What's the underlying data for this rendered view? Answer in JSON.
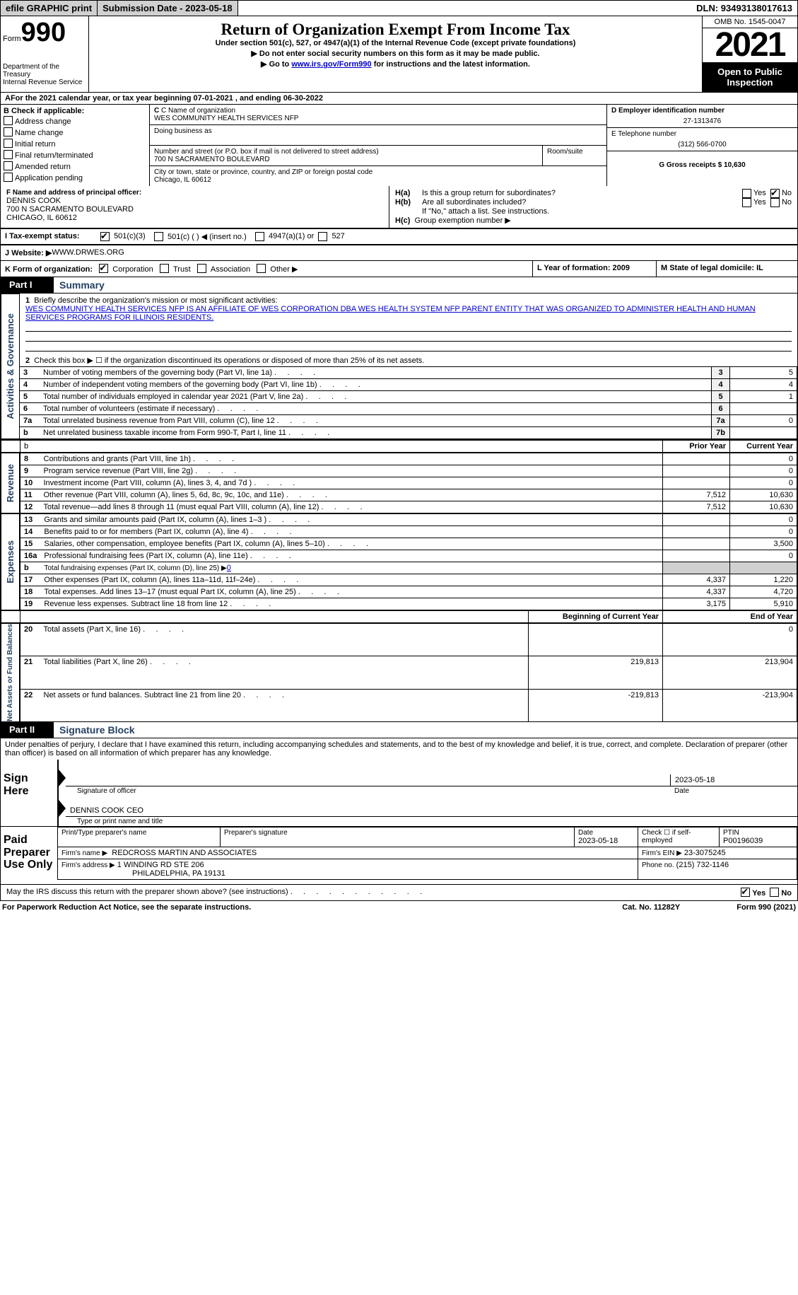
{
  "colors": {
    "bg": "#ffffff",
    "text": "#000000",
    "link": "#0000d0",
    "grey": "#d0d0d0",
    "heading": "#254061"
  },
  "top": {
    "efile": "efile GRAPHIC print",
    "submission": "Submission Date - 2023-05-18",
    "dln": "DLN: 93493138017613"
  },
  "header": {
    "form_word": "Form",
    "form_no": "990",
    "dept": "Department of the Treasury",
    "irs": "Internal Revenue Service",
    "title": "Return of Organization Exempt From Income Tax",
    "sub1": "Under section 501(c), 527, or 4947(a)(1) of the Internal Revenue Code (except private foundations)",
    "sub2": "▶ Do not enter social security numbers on this form as it may be made public.",
    "sub3_pre": "▶ Go to ",
    "sub3_link": "www.irs.gov/Form990",
    "sub3_post": " for instructions and the latest information.",
    "omb": "OMB No. 1545-0047",
    "year": "2021",
    "open": "Open to Public Inspection"
  },
  "A": {
    "text": "For the 2021 calendar year, or tax year beginning 07-01-2021    , and ending 06-30-2022"
  },
  "B": {
    "head": "B Check if applicable:",
    "items": [
      "Address change",
      "Name change",
      "Initial return",
      "Final return/terminated",
      "Amended return",
      "Application pending"
    ]
  },
  "C": {
    "name_lbl": "C Name of organization",
    "name": "WES COMMUNITY HEALTH SERVICES NFP",
    "dba_lbl": "Doing business as",
    "dba": "",
    "street_lbl": "Number and street (or P.O. box if mail is not delivered to street address)",
    "room_lbl": "Room/suite",
    "street": "700 N SACRAMENTO BOULEVARD",
    "city_lbl": "City or town, state or province, country, and ZIP or foreign postal code",
    "city": "Chicago, IL  60612"
  },
  "D": {
    "lbl": "D Employer identification number",
    "val": "27-1313476"
  },
  "E": {
    "lbl": "E Telephone number",
    "val": "(312) 566-0700"
  },
  "G": {
    "lbl": "G Gross receipts $ 10,630"
  },
  "F": {
    "lbl": "F  Name and address of principal officer:",
    "name": "DENNIS COOK",
    "street": "700 N SACRAMENTO BOULEVARD",
    "city": "CHICAGO, IL  60612"
  },
  "H": {
    "a": "Is this a group return for subordinates?",
    "b": "Are all subordinates included?",
    "ha_lbl": "H(a)",
    "hb_lbl": "H(b)",
    "note": "If \"No,\" attach a list. See instructions.",
    "hc_lbl": "H(c)",
    "hc": "Group exemption number ▶",
    "yes": "Yes",
    "no": "No"
  },
  "I": {
    "lbl": "I  Tax-exempt status:",
    "opts": [
      "501(c)(3)",
      "501(c) (  ) ◀ (insert no.)",
      "4947(a)(1) or",
      "527"
    ]
  },
  "J": {
    "lbl": "J  Website: ▶",
    "val": "  WWW.DRWES.ORG"
  },
  "K": {
    "lbl": "K Form of organization:",
    "opts": [
      "Corporation",
      "Trust",
      "Association",
      "Other ▶"
    ]
  },
  "L": {
    "lbl": "L Year of formation: 2009"
  },
  "M": {
    "lbl": "M State of legal domicile: IL"
  },
  "partI": {
    "tag": "Part I",
    "title": "Summary",
    "l1a": "Briefly describe the organization's mission or most significant activities:",
    "l1b": "WES COMMUNITY HEALTH SERVICES NFP IS AN AFFILIATE OF WES CORPORATION DBA WES HEALTH SYSTEM NFP PARENT ENTITY THAT WAS ORGANIZED TO ADMINISTER HEALTH AND HUMAN SERVICES PROGRAMS FOR ILLINOIS RESIDENTS.",
    "l2": "Check this box ▶ ☐  if the organization discontinued its operations or disposed of more than 25% of its net assets.",
    "rows_ag": [
      {
        "n": "3",
        "t": "Number of voting members of the governing body (Part VI, line 1a)",
        "box": "3",
        "v": "5"
      },
      {
        "n": "4",
        "t": "Number of independent voting members of the governing body (Part VI, line 1b)",
        "box": "4",
        "v": "4"
      },
      {
        "n": "5",
        "t": "Total number of individuals employed in calendar year 2021 (Part V, line 2a)",
        "box": "5",
        "v": "1"
      },
      {
        "n": "6",
        "t": "Total number of volunteers (estimate if necessary)",
        "box": "6",
        "v": ""
      },
      {
        "n": "7a",
        "t": "Total unrelated business revenue from Part VIII, column (C), line 12",
        "box": "7a",
        "v": "0"
      },
      {
        "n": "b",
        "t": "Net unrelated business taxable income from Form 990-T, Part I, line 11",
        "box": "7b",
        "v": ""
      }
    ],
    "col_pri": "Prior Year",
    "col_cur": "Current Year",
    "rev": [
      {
        "n": "8",
        "t": "Contributions and grants (Part VIII, line 1h)",
        "p": "",
        "c": "0"
      },
      {
        "n": "9",
        "t": "Program service revenue (Part VIII, line 2g)",
        "p": "",
        "c": "0"
      },
      {
        "n": "10",
        "t": "Investment income (Part VIII, column (A), lines 3, 4, and 7d )",
        "p": "",
        "c": "0"
      },
      {
        "n": "11",
        "t": "Other revenue (Part VIII, column (A), lines 5, 6d, 8c, 9c, 10c, and 11e)",
        "p": "7,512",
        "c": "10,630"
      },
      {
        "n": "12",
        "t": "Total revenue—add lines 8 through 11 (must equal Part VIII, column (A), line 12)",
        "p": "7,512",
        "c": "10,630"
      }
    ],
    "exp": [
      {
        "n": "13",
        "t": "Grants and similar amounts paid (Part IX, column (A), lines 1–3 )",
        "p": "",
        "c": "0"
      },
      {
        "n": "14",
        "t": "Benefits paid to or for members (Part IX, column (A), line 4)",
        "p": "",
        "c": "0"
      },
      {
        "n": "15",
        "t": "Salaries, other compensation, employee benefits (Part IX, column (A), lines 5–10)",
        "p": "",
        "c": "3,500"
      },
      {
        "n": "16a",
        "t": "Professional fundraising fees (Part IX, column (A), line 11e)",
        "p": "",
        "c": "0"
      },
      {
        "n": "b",
        "t": "Total fundraising expenses (Part IX, column (D), line 25) ▶",
        "p": "shade",
        "c": "shade",
        "link": "0"
      },
      {
        "n": "17",
        "t": "Other expenses (Part IX, column (A), lines 11a–11d, 11f–24e)",
        "p": "4,337",
        "c": "1,220"
      },
      {
        "n": "18",
        "t": "Total expenses. Add lines 13–17 (must equal Part IX, column (A), line 25)",
        "p": "4,337",
        "c": "4,720"
      },
      {
        "n": "19",
        "t": "Revenue less expenses. Subtract line 18 from line 12",
        "p": "3,175",
        "c": "5,910"
      }
    ],
    "col_beg": "Beginning of Current Year",
    "col_end": "End of Year",
    "nab": [
      {
        "n": "20",
        "t": "Total assets (Part X, line 16)",
        "p": "",
        "c": "0"
      },
      {
        "n": "21",
        "t": "Total liabilities (Part X, line 26)",
        "p": "219,813",
        "c": "213,904"
      },
      {
        "n": "22",
        "t": "Net assets or fund balances. Subtract line 21 from line 20",
        "p": "-219,813",
        "c": "-213,904"
      }
    ],
    "vlabels": {
      "ag": "Activities & Governance",
      "rev": "Revenue",
      "exp": "Expenses",
      "nab": "Net Assets or Fund Balances"
    }
  },
  "partII": {
    "tag": "Part II",
    "title": "Signature Block",
    "decl": "Under penalties of perjury, I declare that I have examined this return, including accompanying schedules and statements, and to the best of my knowledge and belief, it is true, correct, and complete. Declaration of preparer (other than officer) is based on all information of which preparer has any knowledge."
  },
  "sign": {
    "side": "Sign Here",
    "sig_lbl": "Signature of officer",
    "date_lbl": "Date",
    "date": "2023-05-18",
    "name_lbl": "Type or print name and title",
    "name": "DENNIS COOK CEO"
  },
  "paid": {
    "side": "Paid Preparer Use Only",
    "pt_lbl": "Print/Type preparer's name",
    "sig_lbl": "Preparer's signature",
    "date_lbl": "Date",
    "date": "2023-05-18",
    "self_lbl": "Check ☐ if self-employed",
    "ptin_lbl": "PTIN",
    "ptin": "P00196039",
    "firm_lbl": "Firm's name    ▶",
    "firm": "REDCROSS MARTIN AND ASSOCIATES",
    "ein_lbl": "Firm's EIN ▶",
    "ein": "23-3075245",
    "addr_lbl": "Firm's address ▶",
    "addr1": "1 WINDING RD STE 206",
    "addr2": "PHILADELPHIA, PA  19131",
    "phone_lbl": "Phone no.",
    "phone": "(215) 732-1146"
  },
  "may": {
    "text": "May the IRS discuss this return with the preparer shown above? (see instructions)",
    "yes": "Yes",
    "no": "No"
  },
  "footer": {
    "l": "For Paperwork Reduction Act Notice, see the separate instructions.",
    "c": "Cat. No. 11282Y",
    "r": "Form 990 (2021)"
  }
}
